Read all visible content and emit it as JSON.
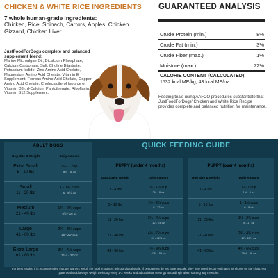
{
  "ingredients": {
    "title": "CHICKEN & WHITE RICE INGREDIENTS",
    "whole_title": "7 whole human-grade ingredients:",
    "whole_text": "Chicken, Rice, Spinach, Carrots, Apples, Chicken Gizzard, Chicken Liver.",
    "blend_title": "JustFoodForDogs complete and balanced supplement blend:",
    "blend_text": "Marine Microalgae Oil, Dicalcium Phosphate, Calcium Carbonate, Salt, Choline Bitartrate, Potassium Iodide, Zinc Amino Acid Chelate, Magnesium Amino Acid Chelate, Vitamin E Supplement, Ferrous Amino Acid Chelate, Copper Amino Acid Chelate, Cholecalciferol (source of Vitamin D3), d-Calcium Pantothenate, Riboflavin, Vitamin B12 Supplement."
  },
  "analysis": {
    "title": "GUARANTEED ANALYSIS",
    "rows": [
      {
        "label": "Crude Protein (min.)",
        "value": "8%"
      },
      {
        "label": "Crude Fat (min.)",
        "value": "3%"
      },
      {
        "label": "Crude Fiber (max.)",
        "value": "1%"
      },
      {
        "label": "Moisture (max.)",
        "value": "72%"
      }
    ],
    "calorie_title": "CALORIE CONTENT (CALCULATED):",
    "calorie_value": "1532 kcal ME/kg; 43 kcal ME/oz",
    "note": "Feeding trials using AAFCO procedures substantiate that JustFoodForDogs' Chicken and White Rice Recipe provides complete and balanced nutrition for maintenance."
  },
  "feeding": {
    "title": "QUICK FEEDING GUIDE",
    "adult": {
      "title": "ADULT DOGS",
      "col_size": "Dog Size & Weight",
      "col_amount": "Daily Amount",
      "rows": [
        {
          "name": "Extra Small",
          "range": "5 - 10 lbs",
          "amount": "¾ - 1 cup",
          "oz": "3⅔ - 6 oz"
        },
        {
          "name": "Small",
          "range": "11 - 20 lbs",
          "amount": "1 - 1¾ cups",
          "oz": "6 - 9½ oz"
        },
        {
          "name": "Medium",
          "range": "21 - 40 lbs",
          "amount": "1¾ - 2¾ cups",
          "oz": "9½ - 16 oz"
        },
        {
          "name": "Large",
          "range": "41 - 60 lbs",
          "amount": "2¾ - 3¾ cups",
          "oz": "16 - 21¼ oz"
        },
        {
          "name": "Extra Large",
          "range": "61 - 80 lbs",
          "amount": "3¾ - 4½ cups",
          "oz": "21¼ - 27 oz"
        }
      ]
    },
    "puppy_under": {
      "title": "PUPPY (under 4 months)",
      "col_size": "Dog Size & Weight",
      "col_amount": "Daily Amount",
      "rows": [
        {
          "weight": "1 - 4 lbs",
          "amount": "½ - 1½ cup",
          "oz": "2⅔ - 8 oz"
        },
        {
          "weight": "5 - 10 lbs",
          "amount": "1½ - 2¼ cups",
          "oz": "8 - 12 oz"
        },
        {
          "weight": "11 - 20 lbs",
          "amount": "2¼ - 4¼ cups",
          "oz": "12 - 24 oz"
        },
        {
          "weight": "21 - 40 lbs",
          "amount": "4¼ - 7½ cups",
          "oz": "24 - 42½ oz"
        },
        {
          "weight": "41 - 60 lbs",
          "amount": "7½ - 9¾ cups",
          "oz": "42½ - 56 oz"
        }
      ]
    },
    "puppy_over": {
      "title": "PUPPY (over 4 months)",
      "col_size": "Dog Size & Weight",
      "col_amount": "Daily Amount",
      "rows": [
        {
          "weight": "1 - 4 lbs",
          "amount": "¼ - 1 cup",
          "oz": "1½ - 6 oz"
        },
        {
          "weight": "5 - 10 lbs",
          "amount": "1 - 1½ cups",
          "oz": "6 - 8 oz"
        },
        {
          "weight": "11 - 20 lbs",
          "amount": "1½ - 2¾ cups",
          "oz": "8 - 17 oz"
        },
        {
          "weight": "21 - 40 lbs",
          "amount": "2¾ - 4¾ cups",
          "oz": "17 - 28½ oz"
        },
        {
          "weight": "41 - 60 lbs",
          "amount": "4¾ - 6¼ cups",
          "oz": "28½ - 39 oz"
        }
      ]
    },
    "footnote": "For best results, it is recommended that pet owners weigh the food in ounces using a digital scale. If pet parents do not have a scale, they may use the cup estimates as shown on the chart. Pet parents should always weigh their dog every 1-2 weeks and adjust initial servings accordingly when starting any new diet."
  },
  "colors": {
    "accent_orange": "#c9782a",
    "accent_teal": "#56c1cf",
    "panel_bg": "#12394a"
  },
  "icons": {
    "dog": "dog-photo"
  }
}
